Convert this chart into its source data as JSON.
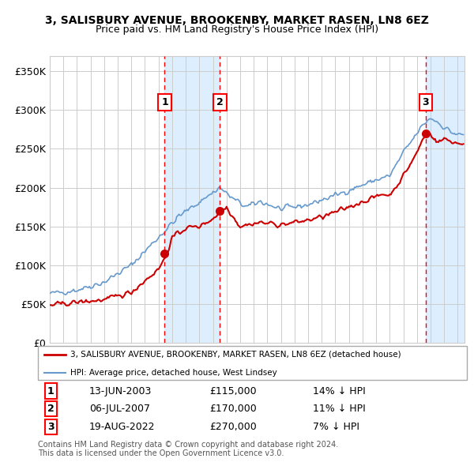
{
  "title": "3, SALISBURY AVENUE, BROOKENBY, MARKET RASEN, LN8 6EZ",
  "subtitle": "Price paid vs. HM Land Registry's House Price Index (HPI)",
  "sale_prices": [
    115000,
    170000,
    270000
  ],
  "sale_labels": [
    "1",
    "2",
    "3"
  ],
  "sale_info": [
    [
      "1",
      "13-JUN-2003",
      "£115,000",
      "14% ↓ HPI"
    ],
    [
      "2",
      "06-JUL-2007",
      "£170,000",
      "11% ↓ HPI"
    ],
    [
      "3",
      "19-AUG-2022",
      "£270,000",
      "7% ↓ HPI"
    ]
  ],
  "legend_property": "3, SALISBURY AVENUE, BROOKENBY, MARKET RASEN, LN8 6EZ (detached house)",
  "legend_hpi": "HPI: Average price, detached house, West Lindsey",
  "footer": "Contains HM Land Registry data © Crown copyright and database right 2024.\nThis data is licensed under the Open Government Licence v3.0.",
  "property_color": "#cc0000",
  "hpi_color": "#6699cc",
  "shade_color": "#ddeeff",
  "grid_color": "#cccccc",
  "bg_color": "#ffffff",
  "ylim": [
    0,
    370000
  ],
  "yticks": [
    0,
    50000,
    100000,
    150000,
    200000,
    250000,
    300000,
    350000
  ],
  "ytick_labels": [
    "£0",
    "£50K",
    "£100K",
    "£150K",
    "£200K",
    "£250K",
    "£300K",
    "£350K"
  ],
  "xstart": 1995.0,
  "xend": 2025.5
}
